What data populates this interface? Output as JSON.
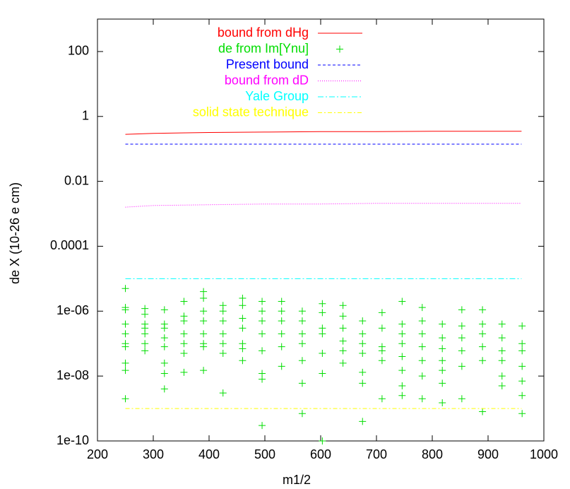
{
  "chart_data": {
    "type": "line",
    "xlabel": "m1/2",
    "ylabel": "de X (10-26 e cm)",
    "xlim": [
      200,
      1000
    ],
    "xticks": [
      200,
      300,
      400,
      500,
      600,
      700,
      800,
      900,
      1000
    ],
    "ylim": [
      1e-10,
      1000
    ],
    "log_y": true,
    "yticks": [
      100,
      1,
      0.01,
      0.0001,
      {
        "value": 1e-06,
        "label": "1e-06"
      },
      {
        "value": 1e-08,
        "label": "1e-08"
      },
      1e-10
    ],
    "legend": "top",
    "series": [
      {
        "name": "bound from dHg",
        "type": "line",
        "color": "#ff0000",
        "dash": "none",
        "x": [
          250,
          300,
          400,
          500,
          600,
          700,
          800,
          900,
          960
        ],
        "values": [
          0.28,
          0.3,
          0.32,
          0.33,
          0.34,
          0.34,
          0.35,
          0.35,
          0.35
        ]
      },
      {
        "name": "de from Im[Ynu]",
        "type": "scatter",
        "color": "#00dd00",
        "x": [
          250,
          250,
          250,
          250,
          250,
          250,
          250,
          250,
          250,
          250,
          285,
          285,
          285,
          285,
          285,
          285,
          285,
          320,
          320,
          320,
          320,
          320,
          320,
          320,
          320,
          355,
          355,
          355,
          355,
          355,
          355,
          355,
          390,
          390,
          390,
          390,
          390,
          390,
          390,
          390,
          425,
          425,
          425,
          425,
          425,
          425,
          425,
          460,
          460,
          460,
          460,
          460,
          460,
          460,
          495,
          495,
          495,
          495,
          495,
          495,
          495,
          495,
          530,
          530,
          530,
          530,
          530,
          530,
          567,
          567,
          567,
          567,
          567,
          567,
          567,
          603,
          603,
          603,
          603,
          603,
          603,
          603,
          640,
          640,
          640,
          640,
          640,
          640,
          675,
          675,
          675,
          675,
          675,
          675,
          675,
          710,
          710,
          710,
          710,
          710,
          710,
          746,
          746,
          746,
          746,
          746,
          746,
          746,
          746,
          782,
          782,
          782,
          782,
          782,
          782,
          782,
          818,
          818,
          818,
          818,
          818,
          818,
          818,
          853,
          853,
          853,
          853,
          853,
          853,
          890,
          890,
          890,
          890,
          890,
          890,
          925,
          925,
          925,
          925,
          925,
          925,
          961,
          961,
          961,
          961,
          961,
          961,
          961
        ],
        "values": [
          5e-06,
          1.3e-06,
          1.1e-06,
          4e-07,
          2e-07,
          1e-07,
          8e-08,
          2.5e-08,
          1.5e-08,
          2e-09,
          1.2e-06,
          8e-07,
          4e-07,
          3e-07,
          2e-07,
          1e-07,
          6e-08,
          1.1e-06,
          4e-07,
          3e-07,
          1.5e-07,
          8e-08,
          2.5e-08,
          1.2e-08,
          4e-09,
          2e-06,
          7e-07,
          5e-07,
          2e-07,
          1e-07,
          5e-08,
          1.3e-08,
          4e-06,
          2.5e-06,
          1e-06,
          5e-07,
          2e-07,
          1e-07,
          8e-08,
          1.5e-08,
          1.5e-06,
          1e-06,
          5e-07,
          2e-07,
          1e-07,
          5e-08,
          3e-09,
          2.5e-06,
          1.5e-06,
          6e-07,
          3e-07,
          1e-07,
          7e-08,
          3e-08,
          2e-06,
          1e-06,
          5e-07,
          2e-07,
          6e-08,
          1.2e-08,
          8e-09,
          3e-10,
          2e-06,
          1e-06,
          5e-07,
          2e-07,
          8e-08,
          2e-08,
          1e-06,
          5e-07,
          2e-07,
          1e-07,
          3e-08,
          6e-09,
          7e-10,
          1.7e-06,
          9e-07,
          3e-07,
          2e-07,
          5e-08,
          1.2e-08,
          1e-10,
          1.5e-06,
          7e-07,
          3e-07,
          1.2e-07,
          6e-08,
          2.5e-08,
          5e-07,
          2e-07,
          1e-07,
          5e-08,
          1.3e-08,
          6e-09,
          4e-10,
          9e-07,
          3e-07,
          8e-08,
          6e-08,
          3e-08,
          2e-09,
          2e-06,
          4e-07,
          2e-07,
          1e-07,
          4e-08,
          1.5e-08,
          5e-09,
          2.5e-09,
          1.3e-06,
          5e-07,
          2e-07,
          8e-08,
          3e-08,
          1e-08,
          2e-09,
          4e-07,
          1.5e-07,
          7e-08,
          3e-08,
          1.5e-08,
          6e-09,
          1.5e-09,
          1.1e-06,
          3.5e-07,
          1.5e-07,
          6e-08,
          2e-08,
          2e-09,
          1.1e-06,
          4e-07,
          2e-07,
          8e-08,
          3e-08,
          8e-10,
          4e-07,
          1.5e-07,
          6e-08,
          3e-08,
          1e-08,
          5e-09,
          3.5e-07,
          1e-07,
          6e-08,
          2e-08,
          7e-09,
          2.5e-09,
          7e-10
        ]
      },
      {
        "name": "Present bound",
        "type": "line",
        "color": "#0000ff",
        "dash": "4,3",
        "x": [
          250,
          960
        ],
        "values": [
          0.14,
          0.14
        ]
      },
      {
        "name": "bound from dD",
        "type": "line",
        "color": "#ff00ff",
        "dash": "1,2",
        "x": [
          250,
          300,
          400,
          500,
          600,
          700,
          800,
          900,
          960
        ],
        "values": [
          0.0016,
          0.0018,
          0.0019,
          0.002,
          0.002,
          0.0021,
          0.0021,
          0.0021,
          0.0021
        ]
      },
      {
        "name": "Yale Group",
        "type": "line",
        "color": "#00ffff",
        "dash": "8,3,2,3",
        "x": [
          250,
          960
        ],
        "values": [
          1e-05,
          1e-05
        ]
      },
      {
        "name": "solid state technique",
        "type": "line",
        "color": "#ffff00",
        "dash": "6,3,2,3",
        "x": [
          250,
          960
        ],
        "values": [
          1e-09,
          1e-09
        ]
      }
    ]
  }
}
